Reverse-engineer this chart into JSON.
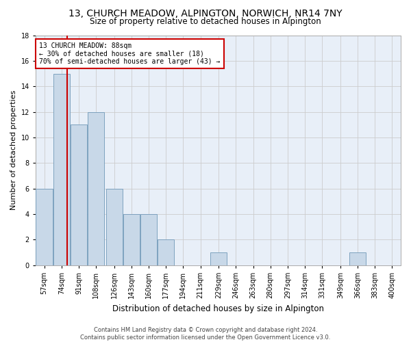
{
  "title": "13, CHURCH MEADOW, ALPINGTON, NORWICH, NR14 7NY",
  "subtitle": "Size of property relative to detached houses in Alpington",
  "xlabel": "Distribution of detached houses by size in Alpington",
  "ylabel": "Number of detached properties",
  "footer_line1": "Contains HM Land Registry data © Crown copyright and database right 2024.",
  "footer_line2": "Contains public sector information licensed under the Open Government Licence v3.0.",
  "bin_labels": [
    "57sqm",
    "74sqm",
    "91sqm",
    "108sqm",
    "126sqm",
    "143sqm",
    "160sqm",
    "177sqm",
    "194sqm",
    "211sqm",
    "229sqm",
    "246sqm",
    "263sqm",
    "280sqm",
    "297sqm",
    "314sqm",
    "331sqm",
    "349sqm",
    "366sqm",
    "383sqm",
    "400sqm"
  ],
  "bar_values": [
    6,
    15,
    11,
    12,
    6,
    4,
    4,
    2,
    0,
    0,
    1,
    0,
    0,
    0,
    0,
    0,
    0,
    0,
    1,
    0,
    0
  ],
  "bar_color": "#c8d8e8",
  "bar_edge_color": "#7098b8",
  "bin_edges": [
    57,
    74,
    91,
    108,
    126,
    143,
    160,
    177,
    194,
    211,
    229,
    246,
    263,
    280,
    297,
    314,
    331,
    349,
    366,
    383,
    400
  ],
  "bin_width": 17,
  "red_line_x": 88,
  "annotation_line1": "13 CHURCH MEADOW: 88sqm",
  "annotation_line2": "← 30% of detached houses are smaller (18)",
  "annotation_line3": "70% of semi-detached houses are larger (43) →",
  "annotation_box_facecolor": "#ffffff",
  "annotation_box_edgecolor": "#cc0000",
  "red_line_color": "#cc0000",
  "grid_color": "#cccccc",
  "plot_bg_color": "#e8eff8",
  "ylim": [
    0,
    18
  ],
  "yticks": [
    0,
    2,
    4,
    6,
    8,
    10,
    12,
    14,
    16,
    18
  ],
  "title_fontsize": 10,
  "subtitle_fontsize": 8.5,
  "ylabel_fontsize": 8,
  "xlabel_fontsize": 8.5,
  "tick_fontsize": 7,
  "footer_fontsize": 6,
  "annotation_fontsize": 7
}
